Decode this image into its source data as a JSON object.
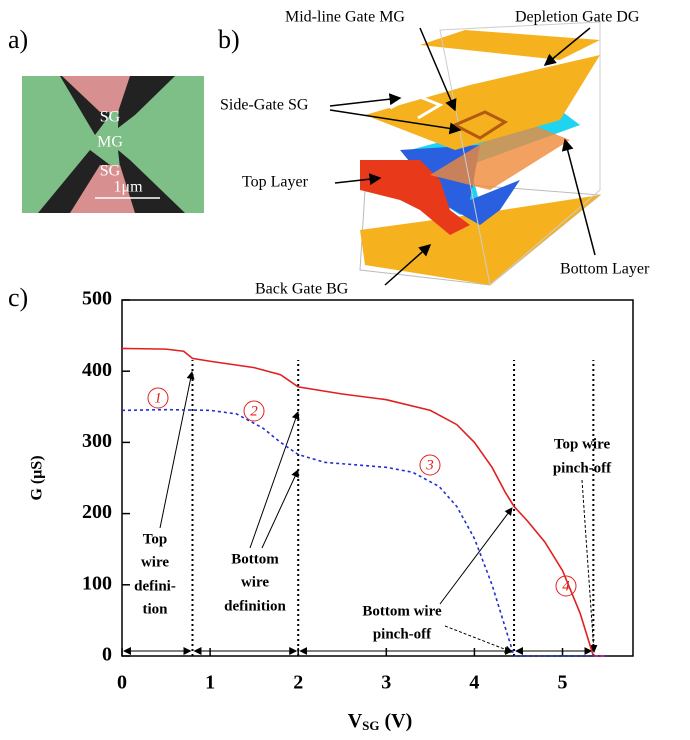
{
  "panel_a": {
    "label": "a)",
    "sg_top": "SG",
    "mg": "MG",
    "sg_bottom": "SG",
    "scale": "1μm"
  },
  "panel_b": {
    "label": "b)",
    "mid_line_gate": "Mid-line Gate MG",
    "depletion_gate": "Depletion Gate DG",
    "side_gate": "Side-Gate SG",
    "top_layer": "Top Layer",
    "bottom_layer": "Bottom Layer",
    "back_gate": "Back Gate BG"
  },
  "chart_data": {
    "type": "line",
    "panel_label": "c)",
    "x_label": {
      "main": "V",
      "sub": "SG",
      "unit": " (V)"
    },
    "y_label": "G (μS)",
    "xlim": [
      0,
      5.8
    ],
    "ylim": [
      0,
      500
    ],
    "xticks": [
      0,
      1,
      2,
      3,
      4,
      5
    ],
    "yticks": [
      0,
      100,
      200,
      300,
      400,
      500
    ],
    "series": [
      {
        "color": "#e02020",
        "dash": false,
        "x": [
          0,
          0.5,
          0.7,
          0.8,
          1.0,
          1.5,
          1.8,
          2.0,
          2.5,
          3.0,
          3.5,
          3.8,
          4.0,
          4.2,
          4.35,
          4.45,
          4.6,
          4.8,
          5.0,
          5.2,
          5.35,
          5.5
        ],
        "values": [
          432,
          431,
          428,
          418,
          414,
          405,
          395,
          378,
          368,
          360,
          345,
          325,
          300,
          265,
          230,
          210,
          190,
          160,
          120,
          60,
          0,
          0
        ]
      },
      {
        "color": "#2030d0",
        "dash": true,
        "x": [
          0,
          0.5,
          1.0,
          1.3,
          1.6,
          1.8,
          2.0,
          2.3,
          2.7,
          3.0,
          3.3,
          3.6,
          3.8,
          4.0,
          4.2,
          4.35,
          4.45,
          5.5
        ],
        "values": [
          345,
          346,
          345,
          340,
          320,
          300,
          283,
          272,
          268,
          265,
          258,
          238,
          210,
          165,
          100,
          40,
          0,
          0
        ]
      }
    ],
    "vlines": [
      0.8,
      2.0,
      4.45,
      5.35
    ],
    "regions": [
      "1",
      "2",
      "3",
      "4"
    ],
    "annotations": [
      [
        "Top",
        "wire",
        "defini-",
        "tion"
      ],
      [
        "Bottom",
        "wire",
        "definition"
      ],
      [
        "Bottom wire",
        "pinch-off"
      ],
      [
        "Top wire",
        "pinch-off"
      ]
    ]
  }
}
